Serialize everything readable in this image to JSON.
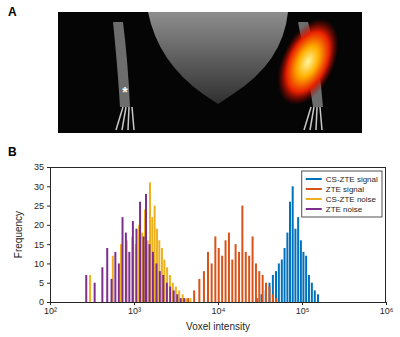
{
  "figure": {
    "panels": [
      {
        "label": "A",
        "annotation": "*"
      },
      {
        "label": "B"
      }
    ]
  },
  "chart_data": {
    "type": "stem",
    "x_label": "Voxel intensity",
    "y_label": "Frequency",
    "log": "x",
    "xlim": [
      100,
      1000000
    ],
    "xticks": [
      {
        "value": 100,
        "label": "10²"
      },
      {
        "value": 1000,
        "label": "10³"
      },
      {
        "value": 10000,
        "label": "10⁴"
      },
      {
        "value": 100000,
        "label": "10⁵"
      },
      {
        "value": 1000000,
        "label": "10⁶"
      }
    ],
    "ylim": [
      0,
      35
    ],
    "yticks": [
      0,
      5,
      10,
      15,
      20,
      25,
      30,
      35
    ],
    "legend": "upper right",
    "series": [
      {
        "name": "CS-ZTE signal",
        "color": "#0072bd",
        "x": [
          29000,
          33000,
          37000,
          41000,
          45000,
          49000,
          53000,
          57500,
          62000,
          67000,
          72000,
          77500,
          83500,
          90000,
          97000,
          104000,
          112000,
          121000,
          131000,
          142000,
          155000
        ],
        "values": [
          1,
          2,
          3,
          5,
          7,
          8,
          10,
          11,
          14,
          18,
          26,
          30,
          19,
          22,
          16,
          13,
          12,
          7,
          5,
          3,
          2
        ]
      },
      {
        "name": "ZTE signal",
        "color": "#d95319",
        "x": [
          4400,
          5200,
          6000,
          6800,
          7600,
          8400,
          9300,
          10200,
          11200,
          12300,
          13500,
          14800,
          16200,
          17800,
          19500,
          21400,
          23500,
          25800,
          28300,
          31000,
          34000,
          37300,
          41000,
          45000,
          49500
        ],
        "values": [
          1,
          3,
          6,
          8,
          13,
          10,
          17,
          14,
          12,
          16,
          18,
          11,
          15,
          13,
          25,
          13,
          12,
          17,
          10,
          8,
          7,
          5,
          4,
          2,
          1
        ]
      },
      {
        "name": "CS-ZTE noise",
        "color": "#edb120",
        "x": [
          300,
          560,
          700,
          820,
          950,
          1050,
          1150,
          1250,
          1350,
          1450,
          1550,
          1650,
          1760,
          1880,
          2000,
          2150,
          2300,
          2480,
          2680,
          2900,
          3150,
          3450,
          3800,
          4200,
          4700
        ],
        "values": [
          7,
          12,
          15,
          16,
          17,
          15,
          20,
          18,
          24,
          16,
          31,
          22,
          25,
          19,
          16,
          14,
          11,
          9,
          7,
          5,
          4,
          3,
          2,
          1,
          1
        ]
      },
      {
        "name": "ZTE noise",
        "color": "#7e2f8e",
        "x": [
          270,
          340,
          420,
          480,
          540,
          600,
          660,
          730,
          800,
          880,
          970,
          1070,
          1180,
          1300,
          1390,
          1530,
          1680,
          1850,
          2030,
          2230,
          2460,
          2700,
          2970,
          3270,
          3600,
          3960
        ],
        "values": [
          7,
          5,
          9,
          14,
          6,
          13,
          10,
          22,
          18,
          13,
          21,
          19,
          26,
          17,
          28,
          15,
          13,
          10,
          8,
          7,
          5,
          4,
          3,
          2,
          1,
          1
        ]
      }
    ]
  }
}
